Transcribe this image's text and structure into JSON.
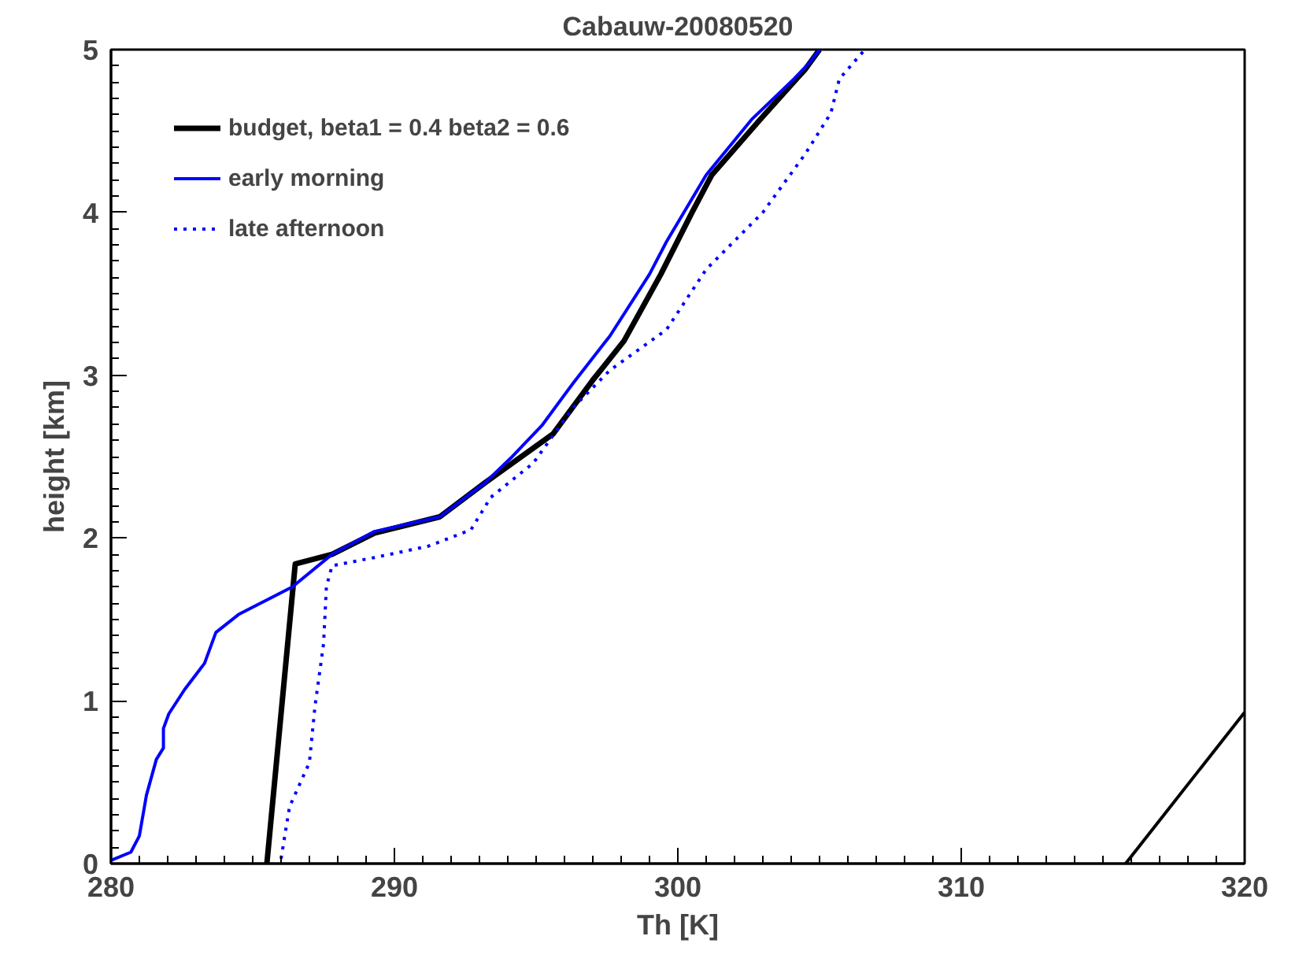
{
  "chart_data": {
    "type": "line",
    "title": "Cabauw-20080520",
    "xlabel": "Th [K]",
    "ylabel": "height [km]",
    "xlim": [
      280,
      320
    ],
    "xticks": [
      280,
      290,
      300,
      310,
      320
    ],
    "ylim": [
      0,
      5
    ],
    "yticks": [
      0,
      1,
      2,
      3,
      4,
      5
    ],
    "grid": false,
    "legend": "top left",
    "marker": "none",
    "series": [
      {
        "name": "budget, beta1 = 0.4 beta2 = 0.6",
        "color": "#000000",
        "line_style": "solid",
        "x": [
          285.5,
          286.5,
          287.8,
          289.3,
          291.6,
          293.2,
          295.6,
          297.0,
          298.1,
          299.4,
          300.5,
          301.2,
          302.9,
          304.5,
          305.0
        ],
        "values": [
          0,
          1.84,
          1.9,
          2.03,
          2.13,
          2.34,
          2.64,
          2.97,
          3.21,
          3.62,
          4.0,
          4.23,
          4.57,
          4.88,
          5.0
        ]
      },
      {
        "name": "early morning",
        "color": "#0000ff",
        "line_style": "solid",
        "x": [
          280.0,
          280.7,
          281.0,
          281.25,
          281.6,
          281.85,
          281.85,
          282.04,
          282.6,
          283.3,
          283.7,
          284.5,
          286.4,
          287.8,
          289.3,
          291.6,
          293.2,
          294.1,
          295.2,
          296.3,
          297.6,
          299.0,
          299.6,
          301.0,
          302.6,
          304.1,
          304.65,
          305.0
        ],
        "values": [
          0.02,
          0.07,
          0.17,
          0.42,
          0.64,
          0.71,
          0.83,
          0.92,
          1.07,
          1.23,
          1.42,
          1.53,
          1.7,
          1.9,
          2.04,
          2.13,
          2.34,
          2.49,
          2.69,
          2.95,
          3.24,
          3.62,
          3.82,
          4.23,
          4.57,
          4.82,
          4.92,
          5.0
        ]
      },
      {
        "name": "late afternoon",
        "color": "#0000ff",
        "line_style": "dotted",
        "x": [
          286.0,
          286.3,
          287.0,
          287.2,
          287.5,
          287.6,
          287.8,
          289.3,
          291.2,
          292.7,
          293.4,
          294.9,
          296.3,
          297.6,
          299.6,
          301.0,
          303.0,
          304.5,
          305.4,
          305.7,
          306.6
        ],
        "values": [
          0.03,
          0.35,
          0.62,
          0.97,
          1.35,
          1.7,
          1.83,
          1.88,
          1.95,
          2.05,
          2.25,
          2.46,
          2.8,
          3.03,
          3.28,
          3.65,
          4.0,
          4.36,
          4.61,
          4.82,
          5.0
        ]
      },
      {
        "color": "#000000",
        "line_style": "solid",
        "x": [
          315.8,
          320
        ],
        "values": [
          0,
          0.93
        ]
      }
    ]
  }
}
